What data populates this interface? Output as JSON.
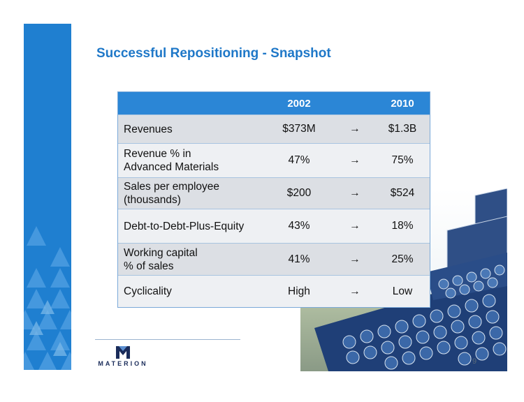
{
  "slide": {
    "title": "Successful Repositioning - Snapshot",
    "page_number": "9"
  },
  "table": {
    "header": {
      "label": "",
      "year1": "2002",
      "arrow": "",
      "year2": "2010"
    },
    "arrow_glyph": "→",
    "rows": [
      {
        "label": "Revenues",
        "year1": "$373M",
        "year2": "$1.3B"
      },
      {
        "label": "Revenue % in\nAdvanced Materials",
        "year1": "47%",
        "year2": "75%"
      },
      {
        "label": "Sales per employee\n(thousands)",
        "year1": "$200",
        "year2": "$524"
      },
      {
        "label": "Debt-to-Debt-Plus-Equity",
        "year1": "43%",
        "year2": "18%"
      },
      {
        "label": "Working capital\n% of sales",
        "year1": "41%",
        "year2": "25%"
      },
      {
        "label": "Cyclicality",
        "year1": "High",
        "year2": "Low"
      }
    ]
  },
  "logo": {
    "text": "MATERION"
  },
  "colors": {
    "brand_blue": "#1f7fd0",
    "title_blue": "#1f78c8",
    "header_blue": "#2b86d6",
    "logo_navy": "#1a2c5a"
  }
}
